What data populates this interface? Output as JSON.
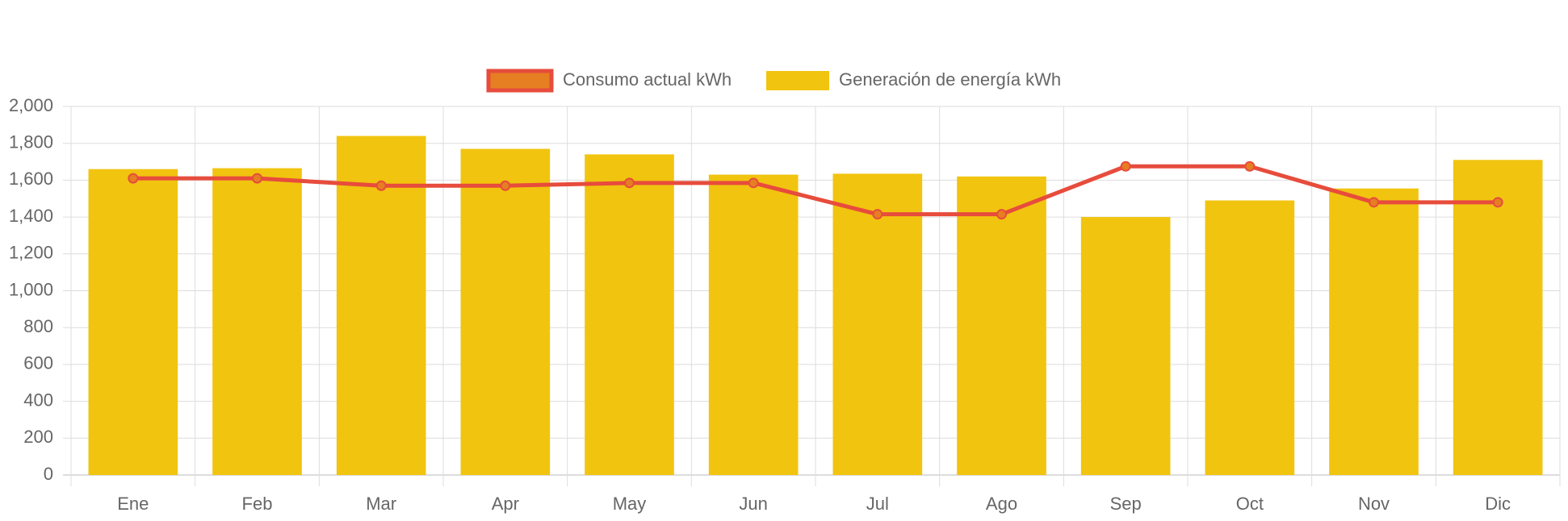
{
  "chart_data": {
    "type": "bar",
    "categories": [
      "Ene",
      "Feb",
      "Mar",
      "Apr",
      "May",
      "Jun",
      "Jul",
      "Ago",
      "Sep",
      "Oct",
      "Nov",
      "Dic"
    ],
    "series": [
      {
        "name": "Consumo actual kWh",
        "type": "line",
        "color": "#e74c3c",
        "point_color": "#e67e22",
        "values": [
          1610,
          1610,
          1570,
          1570,
          1585,
          1585,
          1415,
          1415,
          1675,
          1675,
          1480,
          1480
        ]
      },
      {
        "name": "Generación de energía kWh",
        "type": "bar",
        "color": "#f1c40f",
        "values": [
          1660,
          1665,
          1840,
          1770,
          1740,
          1630,
          1635,
          1620,
          1400,
          1490,
          1555,
          1710
        ]
      }
    ],
    "ylim": [
      0,
      2000
    ],
    "yticks": [
      0,
      200,
      400,
      600,
      800,
      {
        "value": 1000,
        "label": "1,000"
      },
      {
        "value": 1200,
        "label": "1,200"
      },
      {
        "value": 1400,
        "label": "1,400"
      },
      {
        "value": 1600,
        "label": "1,600"
      },
      {
        "value": 1800,
        "label": "1,800"
      },
      {
        "value": 2000,
        "label": "2,000"
      }
    ],
    "grid": true,
    "legend": "top"
  }
}
